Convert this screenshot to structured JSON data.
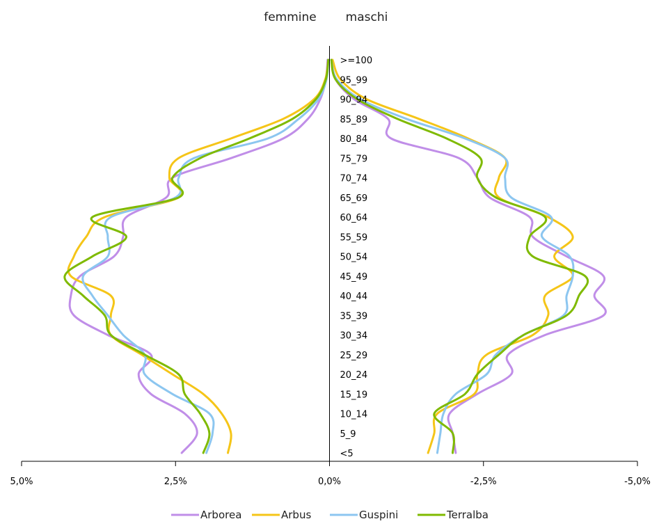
{
  "chart_data": {
    "type": "line",
    "title_left": "femmine",
    "title_right": "maschi",
    "age_groups": [
      ">=100",
      "95_99",
      "90_94",
      "85_89",
      "80_84",
      "75_79",
      "70_74",
      "65_69",
      "60_64",
      "55_59",
      "50_54",
      "45_49",
      "40_44",
      "35_39",
      "30_34",
      "25_29",
      "20_24",
      "15_19",
      "10_14",
      "5_9",
      "<5"
    ],
    "x_ticks": [
      5.0,
      2.5,
      0.0,
      -2.5,
      -5.0
    ],
    "x_tick_labels": [
      "5,0%",
      "2,5%",
      "0,0%",
      "-2,5%",
      "-5,0%"
    ],
    "xlim": [
      5.0,
      -5.0
    ],
    "series": [
      {
        "name": "Arborea",
        "color": "#c08ee8",
        "femmine": [
          0.03,
          0.06,
          0.15,
          0.35,
          0.75,
          1.6,
          2.55,
          2.65,
          3.3,
          3.35,
          3.5,
          4.05,
          4.2,
          4.15,
          3.6,
          2.9,
          3.1,
          2.9,
          2.35,
          2.15,
          2.4
        ],
        "maschi": [
          -0.03,
          -0.1,
          -0.4,
          -0.95,
          -1.0,
          -2.1,
          -2.4,
          -2.6,
          -3.25,
          -3.3,
          -3.85,
          -4.45,
          -4.3,
          -4.45,
          -3.5,
          -2.9,
          -2.95,
          -2.4,
          -1.95,
          -2.0,
          -2.05
        ]
      },
      {
        "name": "Arbus",
        "color": "#f5c518",
        "femmine": [
          0.02,
          0.07,
          0.25,
          0.75,
          1.6,
          2.45,
          2.6,
          2.45,
          3.65,
          3.95,
          4.15,
          4.2,
          3.55,
          3.55,
          3.55,
          3.05,
          2.55,
          2.05,
          1.75,
          1.6,
          1.65
        ],
        "maschi": [
          -0.05,
          -0.18,
          -0.6,
          -1.45,
          -2.25,
          -2.85,
          -2.75,
          -2.75,
          -3.55,
          -3.95,
          -3.65,
          -3.95,
          -3.5,
          -3.55,
          -3.3,
          -2.55,
          -2.4,
          -2.35,
          -1.75,
          -1.7,
          -1.6
        ]
      },
      {
        "name": "Guspini",
        "color": "#8cc6f0",
        "femmine": [
          0.02,
          0.05,
          0.18,
          0.5,
          1.0,
          2.2,
          2.45,
          2.5,
          3.55,
          3.6,
          3.6,
          4.0,
          3.85,
          3.6,
          3.35,
          3.0,
          3.0,
          2.55,
          1.95,
          1.9,
          2.0
        ],
        "maschi": [
          -0.03,
          -0.12,
          -0.5,
          -1.25,
          -2.2,
          -2.85,
          -2.85,
          -2.95,
          -3.6,
          -3.45,
          -3.9,
          -3.95,
          -3.85,
          -3.8,
          -3.15,
          -2.7,
          -2.55,
          -2.05,
          -1.85,
          -1.8,
          -1.75
        ]
      },
      {
        "name": "Terralba",
        "color": "#7fba00",
        "femmine": [
          0.02,
          0.06,
          0.22,
          0.6,
          1.3,
          2.1,
          2.55,
          2.45,
          3.85,
          3.3,
          3.85,
          4.3,
          4.0,
          3.65,
          3.55,
          3.0,
          2.45,
          2.35,
          2.1,
          1.95,
          2.05
        ],
        "maschi": [
          -0.03,
          -0.1,
          -0.45,
          -1.1,
          -1.9,
          -2.45,
          -2.4,
          -2.7,
          -3.5,
          -3.25,
          -3.3,
          -4.15,
          -4.05,
          -3.85,
          -3.15,
          -2.75,
          -2.4,
          -2.2,
          -1.7,
          -2.0,
          -2.0
        ]
      }
    ],
    "legend_position": "bottom",
    "grid": false
  }
}
